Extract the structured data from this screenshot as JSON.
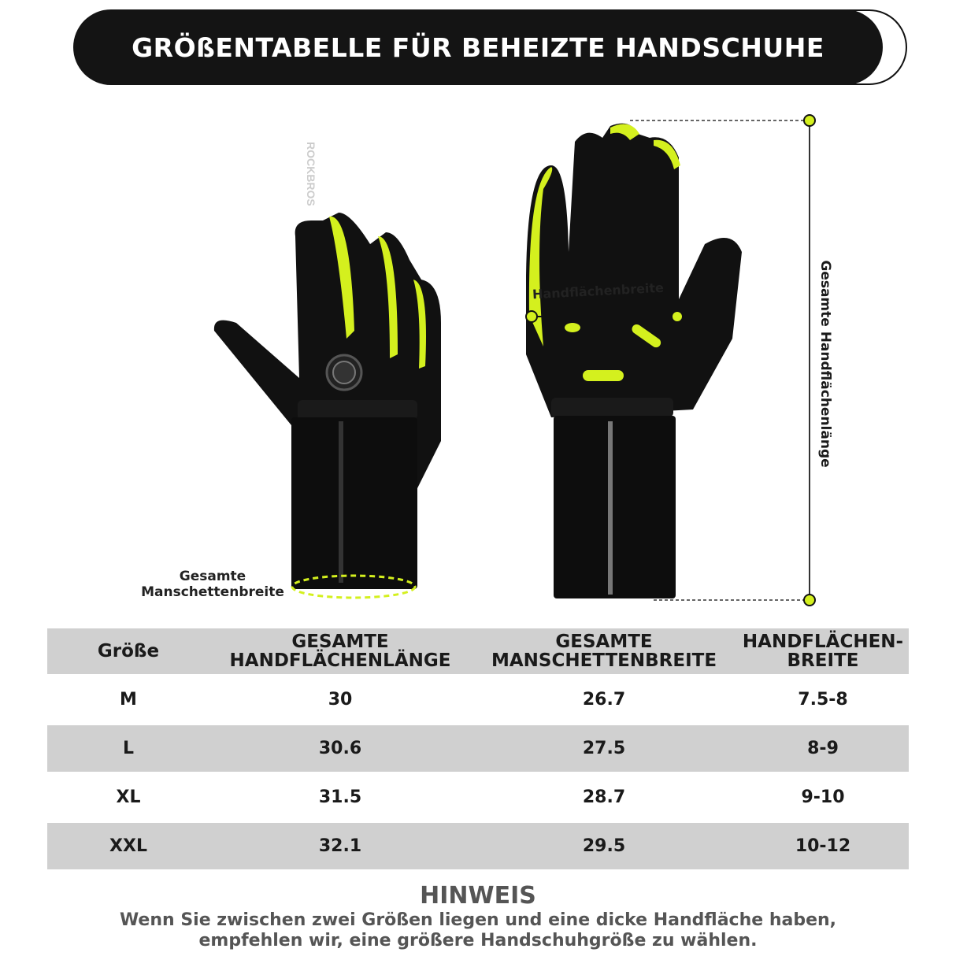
{
  "banner": {
    "title": "GRÖßENTABELLE FÜR BEHEIZTE HANDSCHUHE"
  },
  "product": {
    "brand_logo": "ROCKBROS",
    "accent_color": "#d4f01e"
  },
  "labels": {
    "palm_width": "Handflächenbreite",
    "total_length": "Gesamte Handflächenlänge",
    "cuff_width_line1": "Gesamte",
    "cuff_width_line2": "Manschettenbreite"
  },
  "table": {
    "headers": [
      "Größe",
      "GESAMTE HANDFLÄCHENLÄNGE",
      "GESAMTE MANSCHETTENBREITE",
      "HANDFLÄCHEN- BREITE"
    ],
    "rows": [
      [
        "M",
        "30",
        "26.7",
        "7.5-8"
      ],
      [
        "L",
        "30.6",
        "27.5",
        "8-9"
      ],
      [
        "XL",
        "31.5",
        "28.7",
        "9-10"
      ],
      [
        "XXL",
        "32.1",
        "29.5",
        "10-12"
      ]
    ]
  },
  "note": {
    "title": "HINWEIS",
    "text": "Wenn Sie zwischen zwei Größen liegen und eine dicke Handfläche haben, empfehlen wir, eine größere Handschuhgröße zu wählen."
  }
}
